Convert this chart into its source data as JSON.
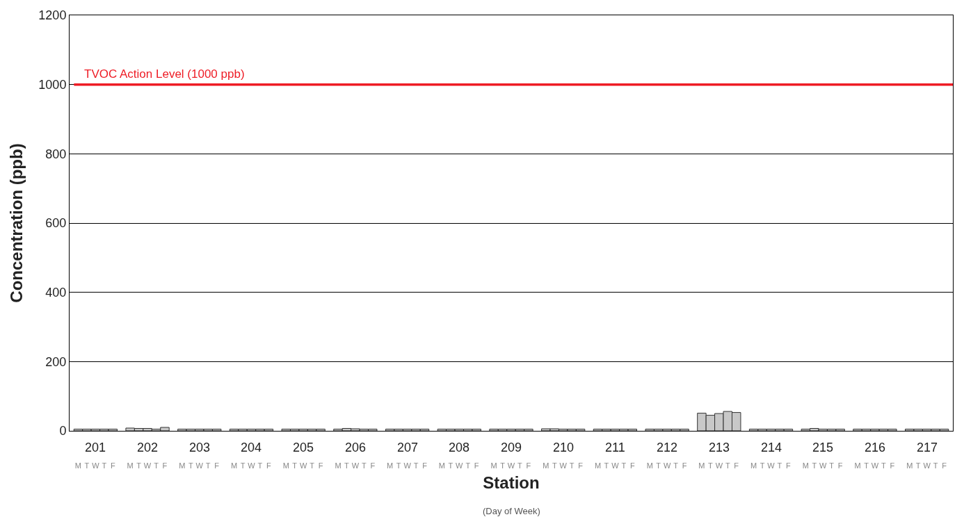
{
  "chart_data": {
    "type": "bar",
    "xlabel": "Station",
    "ylabel": "Concentration (ppb)",
    "categories": [
      "M",
      "T",
      "W",
      "T",
      "F",
      "M",
      "T",
      "W",
      "T",
      "F",
      "M",
      "T",
      "W",
      "T",
      "F",
      "M",
      "T",
      "W",
      "T",
      "F",
      "M",
      "T",
      "W",
      "T",
      "F",
      "M",
      "T",
      "W",
      "T",
      "F",
      "M",
      "T",
      "W",
      "T",
      "F",
      "M",
      "T",
      "W",
      "T",
      "F",
      "M",
      "T",
      "W",
      "T",
      "F",
      "M",
      "T",
      "W",
      "T",
      "F",
      "M",
      "T",
      "W",
      "T",
      "F",
      "M",
      "T",
      "W",
      "T",
      "F",
      "M",
      "T",
      "W",
      "T",
      "F",
      "M",
      "T",
      "W",
      "T",
      "F",
      "M",
      "T",
      "W",
      "T",
      "F",
      "M",
      "T",
      "W",
      "T",
      "F",
      "M",
      "T",
      "W",
      "T",
      "F"
    ],
    "values": [
      5,
      5,
      5,
      5,
      5,
      8,
      7,
      7,
      5,
      10,
      5,
      5,
      5,
      5,
      5,
      5,
      5,
      5,
      5,
      5,
      5,
      5,
      5,
      5,
      5,
      5,
      7,
      6,
      5,
      5,
      5,
      5,
      5,
      5,
      5,
      5,
      5,
      5,
      5,
      5,
      5,
      5,
      5,
      5,
      5,
      6,
      6,
      5,
      5,
      5,
      5,
      5,
      5,
      5,
      5,
      5,
      5,
      5,
      5,
      5,
      51,
      45,
      50,
      56,
      53,
      5,
      5,
      5,
      5,
      5,
      5,
      7,
      5,
      5,
      5,
      5,
      5,
      5,
      5,
      5,
      5,
      5,
      5,
      5,
      5
    ],
    "color": "#c8c8c8",
    "ylim": [
      0,
      1200
    ],
    "yticks": [
      0,
      200,
      400,
      600,
      800,
      1000,
      1200
    ],
    "grid": "y",
    "ref_lines": [
      {
        "axis": "y",
        "value": 1000,
        "label": "TVOC Action Level (1000 ppb)",
        "color": "#ee1c25"
      }
    ],
    "annotations": [
      "201",
      "202",
      "203",
      "204",
      "205",
      "206",
      "207",
      "208",
      "209",
      "210",
      "211",
      "212",
      "213",
      "214",
      "215",
      "216",
      "217",
      "(Day of Week)"
    ]
  }
}
